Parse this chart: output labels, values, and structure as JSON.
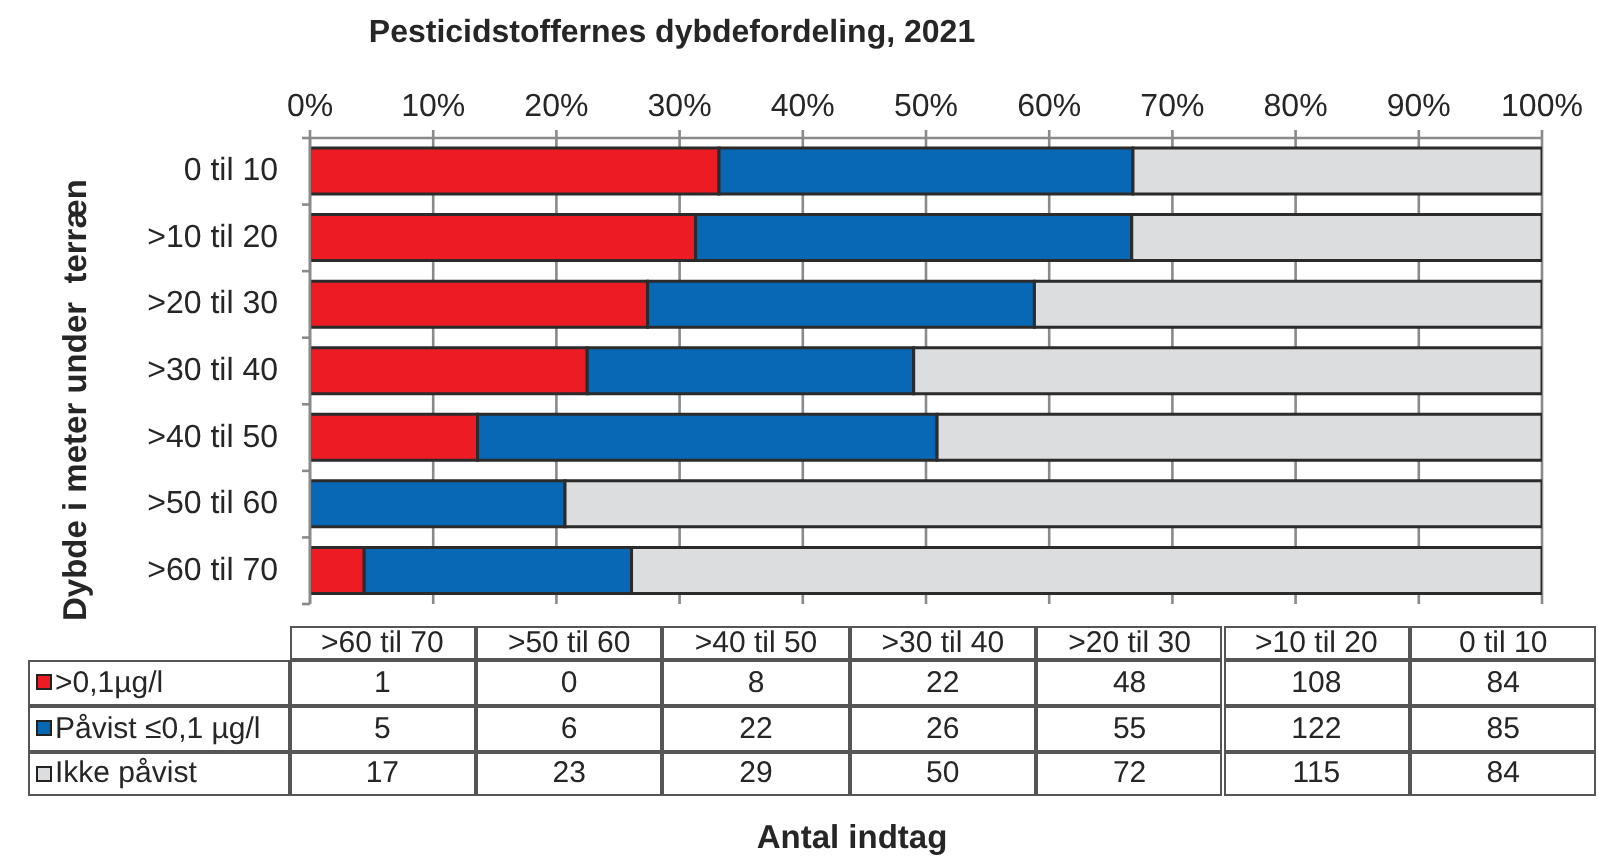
{
  "chart_data": [
    {
      "type": "bar",
      "orientation": "horizontal",
      "stacked": true,
      "title": "Pesticidstoffernes dybdefordeling, 2021",
      "ylabel": "Dybde i meter under  terræn",
      "categories": [
        "0 til 10",
        ">10 til 20",
        ">20 til 30",
        ">30 til 40",
        ">40 til 50",
        ">50 til 60",
        ">60 til 70"
      ],
      "series": [
        {
          "color": "#ed1c24",
          "values": [
            33.2,
            31.3,
            27.4,
            22.5,
            13.6,
            0,
            4.4
          ]
        },
        {
          "color": "#0868b6",
          "values": [
            33.6,
            35.4,
            31.4,
            26.5,
            37.3,
            20.7,
            21.7
          ]
        },
        {
          "color": "#dcdddf",
          "values": [
            33.2,
            33.3,
            41.2,
            51.0,
            49.1,
            79.3,
            73.9
          ]
        }
      ],
      "xlim": [
        0,
        100
      ],
      "xticks": [
        {
          "value": 0,
          "label": "0%"
        },
        {
          "value": 10,
          "label": "10%"
        },
        {
          "value": 20,
          "label": "20%"
        },
        {
          "value": 30,
          "label": "30%"
        },
        {
          "value": 40,
          "label": "40%"
        },
        {
          "value": 50,
          "label": "50%"
        },
        {
          "value": 60,
          "label": "60%"
        },
        {
          "value": 70,
          "label": "70%"
        },
        {
          "value": 80,
          "label": "80%"
        },
        {
          "value": 90,
          "label": "90%"
        },
        {
          "value": 100,
          "label": "100%"
        }
      ],
      "grid": "x"
    },
    {
      "type": "other",
      "xlabel": "Antal indtag",
      "categories": [
        ">60 til 70",
        ">50 til 60",
        ">40 til 50",
        ">30 til 40",
        ">20 til 30",
        ">10 til 20",
        "0 til 10"
      ],
      "series": [
        {
          "name": ">0,1µg/l",
          "color": "#ed1c24",
          "values": [
            1,
            0,
            8,
            22,
            48,
            108,
            84
          ]
        },
        {
          "name": "Påvist ≤0,1 µg/l",
          "color": "#0868b6",
          "values": [
            5,
            6,
            22,
            26,
            55,
            122,
            85
          ]
        },
        {
          "name": "Ikke påvist",
          "color": "#dcdddf",
          "values": [
            17,
            23,
            29,
            50,
            72,
            115,
            84
          ]
        }
      ],
      "data_labels": true,
      "legend": "left"
    }
  ]
}
